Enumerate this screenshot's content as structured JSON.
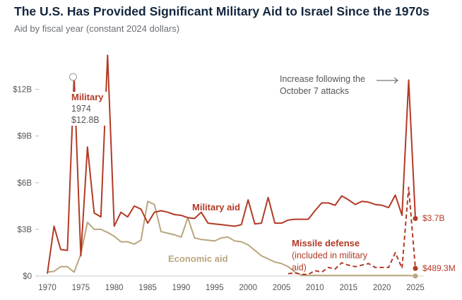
{
  "header": {
    "title": "The U.S. Has Provided Significant Military Aid to Israel Since the 1970s",
    "subtitle": "Aid by fiscal year (constant 2024 dollars)"
  },
  "colors": {
    "military": "#b23a25",
    "economic": "#b9a67e",
    "axis": "#cccccc",
    "text": "#555555",
    "title": "#14273f"
  },
  "chart_data": {
    "type": "line",
    "title": "The U.S. Has Provided Significant Military Aid to Israel Since the 1970s",
    "subtitle": "Aid by fiscal year (constant 2024 dollars)",
    "xlabel": "",
    "ylabel": "",
    "xlim": [
      1970,
      2025
    ],
    "ylim": [
      0,
      14.5
    ],
    "x_ticks": [
      "1970",
      "1975",
      "1980",
      "1985",
      "1990",
      "1995",
      "2000",
      "2005",
      "2010",
      "2015",
      "2020",
      "2025"
    ],
    "y_ticks": [
      {
        "v": 0,
        "label": "$0"
      },
      {
        "v": 3,
        "label": "$3B"
      },
      {
        "v": 6,
        "label": "$6B"
      },
      {
        "v": 9,
        "label": "$9B"
      },
      {
        "v": 12,
        "label": "$12B"
      }
    ],
    "unit": "billions USD",
    "series": [
      {
        "name": "Military aid",
        "style": "solid",
        "color": "#b23a25",
        "start": 1970,
        "values": [
          0.15,
          3.2,
          1.7,
          1.65,
          12.8,
          1.3,
          8.3,
          4.05,
          3.8,
          14.2,
          3.2,
          4.1,
          3.8,
          4.5,
          4.3,
          3.4,
          4.1,
          4.2,
          4.1,
          3.95,
          3.9,
          3.75,
          3.7,
          4.1,
          3.4,
          3.35,
          3.3,
          3.25,
          3.2,
          3.3,
          4.9,
          3.35,
          3.4,
          5.05,
          3.4,
          3.4,
          3.6,
          3.65,
          3.65,
          3.65,
          4.2,
          4.7,
          4.7,
          4.55,
          5.15,
          4.9,
          4.6,
          4.8,
          4.75,
          4.6,
          4.55,
          4.4,
          5.2,
          3.9,
          12.6,
          3.7
        ]
      },
      {
        "name": "Economic aid",
        "style": "solid",
        "color": "#b9a67e",
        "start": 1970,
        "values": [
          0.25,
          0.3,
          0.6,
          0.6,
          0.25,
          1.4,
          3.45,
          3.0,
          3.0,
          2.8,
          2.55,
          2.2,
          2.2,
          2.05,
          2.3,
          4.8,
          4.6,
          2.85,
          2.75,
          2.65,
          2.5,
          3.75,
          2.45,
          2.35,
          2.3,
          2.25,
          2.45,
          2.5,
          2.25,
          2.2,
          2.0,
          1.65,
          1.3,
          1.1,
          0.9,
          0.8,
          0.6,
          0.25,
          0.05,
          0.04,
          0.04,
          0.03,
          0.03,
          0.03,
          0.03,
          0.03,
          0.03,
          0.03,
          0.03,
          0.03,
          0.03,
          0.03,
          0.03,
          0.03,
          0.03,
          0.0
        ]
      },
      {
        "name": "Missile defense (included in military aid)",
        "style": "dashed",
        "color": "#b23a25",
        "start": 2006,
        "values": [
          0.15,
          0.2,
          0.1,
          0.1,
          0.35,
          0.25,
          0.55,
          0.45,
          0.85,
          0.7,
          0.6,
          0.7,
          0.8,
          0.55,
          0.55,
          0.55,
          1.5,
          0.5,
          5.7,
          0.4893
        ]
      }
    ],
    "annotations": {
      "peak_label": "Military",
      "peak_year": "1974",
      "peak_value": "$12.8B",
      "military_label": "Military aid",
      "economic_label": "Economic aid",
      "missile_label": "Missile defense",
      "missile_note_1": "(included in military",
      "missile_note_2": "aid)",
      "oct7_line1": "Increase following the",
      "oct7_line2": "October 7 attacks",
      "end_military": "$3.7B",
      "end_missile": "$489.3M"
    }
  }
}
